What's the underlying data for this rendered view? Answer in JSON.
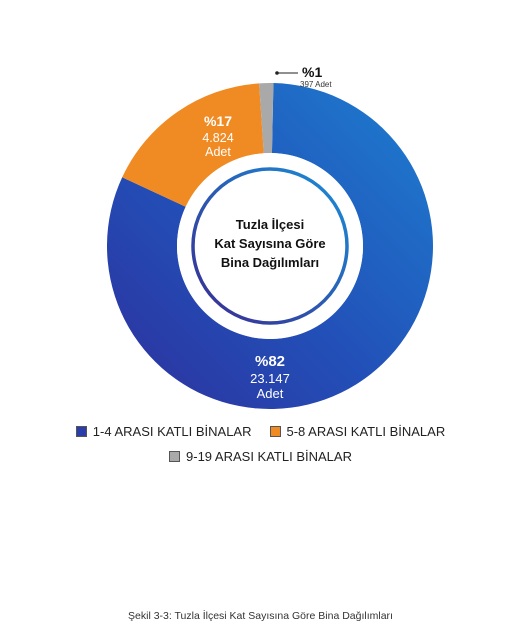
{
  "chart_data": {
    "type": "pie",
    "style": "donut",
    "center_title_lines": [
      "Tuzla İlçesi",
      "Kat Sayısına Göre",
      "Bina Dağılımları"
    ],
    "slices": [
      {
        "category": "1-4 ARASI KATLI BİNALAR",
        "value": 23147,
        "percent_label": "%82",
        "count_label": "23.147",
        "unit": "Adet",
        "color": "#2a3da8"
      },
      {
        "category": "5-8 ARASI KATLI BİNALAR",
        "value": 4824,
        "percent_label": "%17",
        "count_label": "4.824",
        "unit": "Adet",
        "color": "#f08a22"
      },
      {
        "category": "9-19 ARASI KATLI BİNALAR",
        "value": 397,
        "percent_label": "%1",
        "count_label": "397 Adet",
        "unit": "",
        "color": "#a9a9a9"
      }
    ],
    "legend_placement": "bottom"
  },
  "caption": "Şekil 3-3: Tuzla İlçesi Kat Sayısına Göre Bina Dağılımları"
}
